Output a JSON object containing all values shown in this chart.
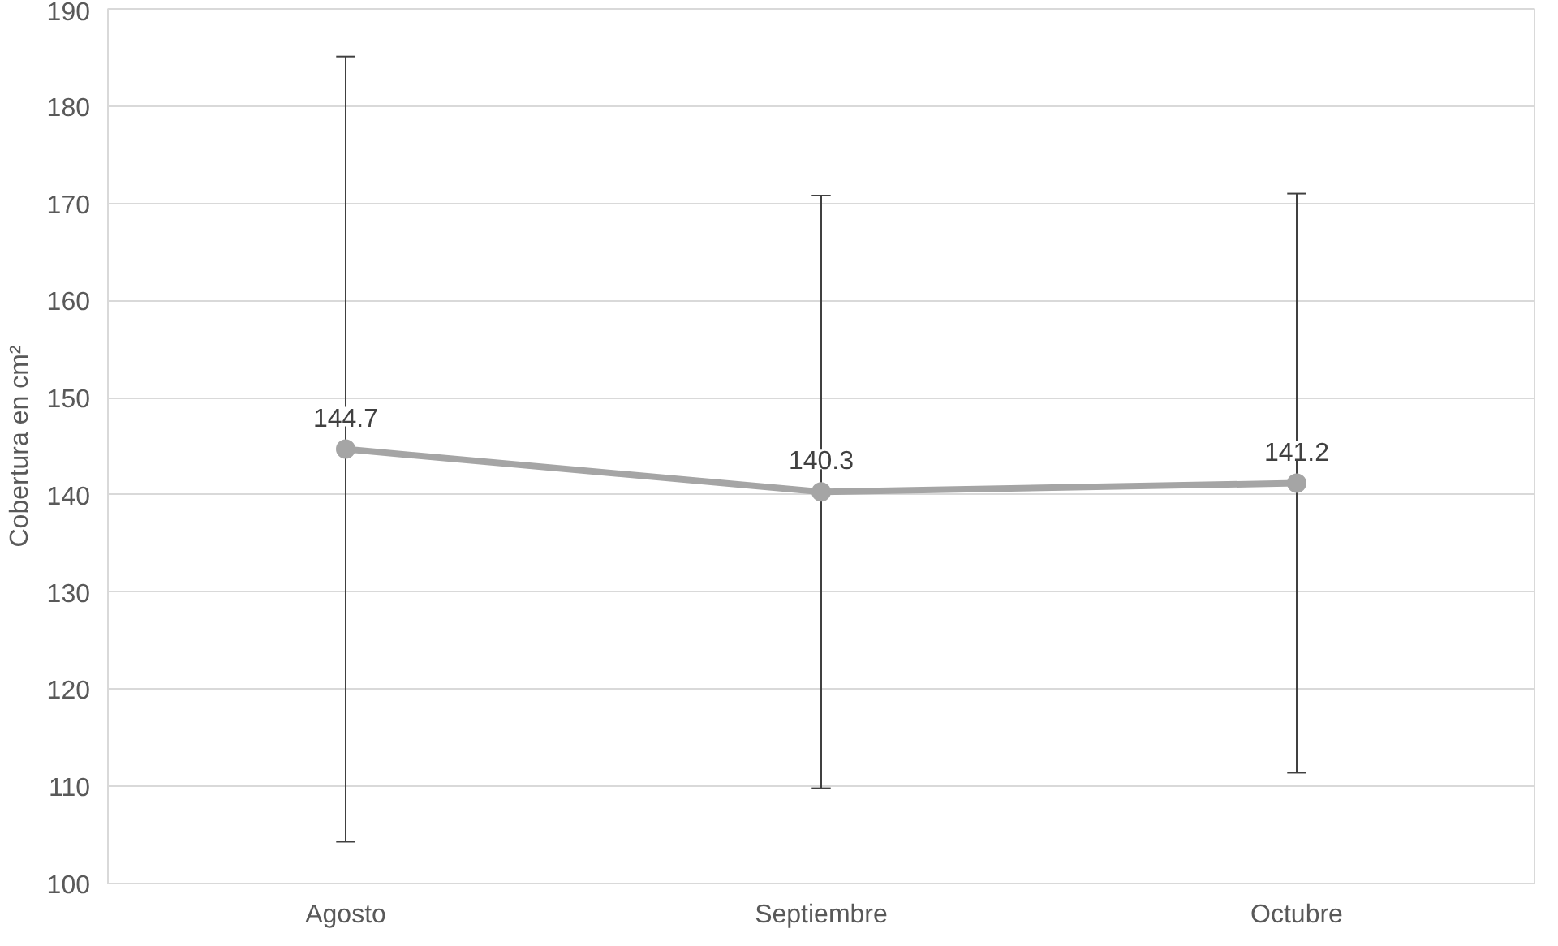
{
  "chart_data": {
    "type": "line",
    "ylabel": "Cobertura en cm²",
    "categories": [
      "Agosto",
      "Septiembre",
      "Octubre"
    ],
    "series": [
      {
        "color": "#a5a5a5",
        "values": [
          144.7,
          140.3,
          141.2
        ],
        "errors": [
          40.4,
          30.5,
          29.8
        ]
      }
    ],
    "ylim": [
      100,
      190
    ],
    "yticks": [
      100,
      110,
      120,
      130,
      140,
      150,
      160,
      170,
      180,
      190
    ],
    "grid": "y",
    "marker": "circle",
    "line_style": "solid",
    "data_labels": true
  }
}
